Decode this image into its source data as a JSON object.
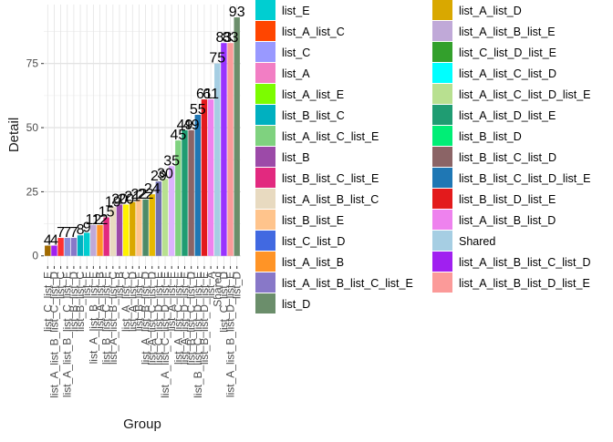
{
  "chart_data": {
    "type": "bar",
    "xlabel": "Group",
    "ylabel": "Detail",
    "ylim": [
      -4,
      98
    ],
    "y_ticks": [
      0,
      25,
      50,
      75
    ],
    "grid": true,
    "legend_placement": "right",
    "categories": [
      "list_C_list_E",
      "list_A_list_B_list_C_list_D",
      "list_C",
      "list_A_list_B_list_C_list_E",
      "list_B_list_D",
      "list_B_list_C",
      "list_E",
      "list_A_list_B_list_E",
      "list_A_list_B",
      "list_B_list_C_list_E",
      "list_A_list_B_list_C",
      "list_B",
      "list_A_list_C",
      "list_A_list_D",
      "list_B_list_E",
      "list_A_list_B_list_D",
      "list_A_list_C_list_D",
      "list_C_list_D_list_E",
      "list_A_list_C_list_D_list_E",
      "list_A_list_E",
      "list_A_list_C_list_E",
      "list_A_list_D_list_E",
      "list_B_list_C_list_D",
      "list_B_list_C_list_D_list_E",
      "list_B_list_D_list_E",
      "list_A",
      "Shared",
      "list_C_list_D",
      "list_A_list_B_list_D_list_E",
      "list_D"
    ],
    "values": [
      4,
      4,
      7,
      7,
      7,
      8,
      9,
      12,
      12,
      15,
      19,
      20,
      20,
      21,
      22,
      22,
      24,
      29,
      30,
      35,
      45,
      49,
      49,
      55,
      61,
      61,
      75,
      83,
      83,
      93
    ],
    "colors": [
      "#a16a00",
      "#a020f0",
      "#ff3030",
      "#8b8bd8",
      "#8878c8",
      "#00b0c0",
      "#00ced1",
      "#c0a9d8",
      "#ff9426",
      "#e2297f",
      "#e8dac0",
      "#9c4aa8",
      "#fff200",
      "#d9a800",
      "#ffc48c",
      "#4d8a68",
      "#e6b800",
      "#7070b0",
      "#b8e090",
      "#dcb3ff",
      "#7fd27f",
      "#1f9c72",
      "#8b6466",
      "#1f77b4",
      "#e31a1c",
      "#ee82ee",
      "#a6cee3",
      "#9933ff",
      "#fb9a99",
      "#6b8e6b"
    ],
    "legend": {
      "col1": [
        {
          "label": "list_E",
          "color": "#00ced1"
        },
        {
          "label": "list_A_list_C",
          "color": "#ff4500"
        },
        {
          "label": "list_C",
          "color": "#9999ff"
        },
        {
          "label": "list_A",
          "color": "#f27ec4"
        },
        {
          "label": "list_A_list_E",
          "color": "#7cfc00"
        },
        {
          "label": "list_B_list_C",
          "color": "#00b0c0"
        },
        {
          "label": "list_A_list_C_list_E",
          "color": "#7fd27f"
        },
        {
          "label": "list_B",
          "color": "#9c4aa8"
        },
        {
          "label": "list_B_list_C_list_E",
          "color": "#e2297f"
        },
        {
          "label": "list_A_list_B_list_C",
          "color": "#e8dac0"
        },
        {
          "label": "list_B_list_E",
          "color": "#ffc48c"
        },
        {
          "label": "list_C_list_D",
          "color": "#4169e1"
        },
        {
          "label": "list_A_list_B",
          "color": "#ff9426"
        },
        {
          "label": "list_A_list_B_list_C_list_E",
          "color": "#8878c8"
        },
        {
          "label": "list_D",
          "color": "#6b8e6b"
        }
      ],
      "col2": [
        {
          "label": "list_A_list_D",
          "color": "#d9a800"
        },
        {
          "label": "list_A_list_B_list_E",
          "color": "#c0a9d8"
        },
        {
          "label": "list_C_list_D_list_E",
          "color": "#33a02c"
        },
        {
          "label": "list_A_list_C_list_D",
          "color": "#00ffff"
        },
        {
          "label": "list_A_list_C_list_D_list_E",
          "color": "#b8e090"
        },
        {
          "label": "list_A_list_D_list_E",
          "color": "#1f9c72"
        },
        {
          "label": "list_B_list_D",
          "color": "#00ee76"
        },
        {
          "label": "list_B_list_C_list_D",
          "color": "#8b6466"
        },
        {
          "label": "list_B_list_C_list_D_list_E",
          "color": "#1f77b4"
        },
        {
          "label": "list_B_list_D_list_E",
          "color": "#e31a1c"
        },
        {
          "label": "list_A_list_B_list_D",
          "color": "#ee82ee"
        },
        {
          "label": "Shared",
          "color": "#a6cee3"
        },
        {
          "label": "list_A_list_B_list_C_list_D",
          "color": "#a020f0"
        },
        {
          "label": "list_A_list_B_list_D_list_E",
          "color": "#fb9a99"
        }
      ]
    }
  }
}
